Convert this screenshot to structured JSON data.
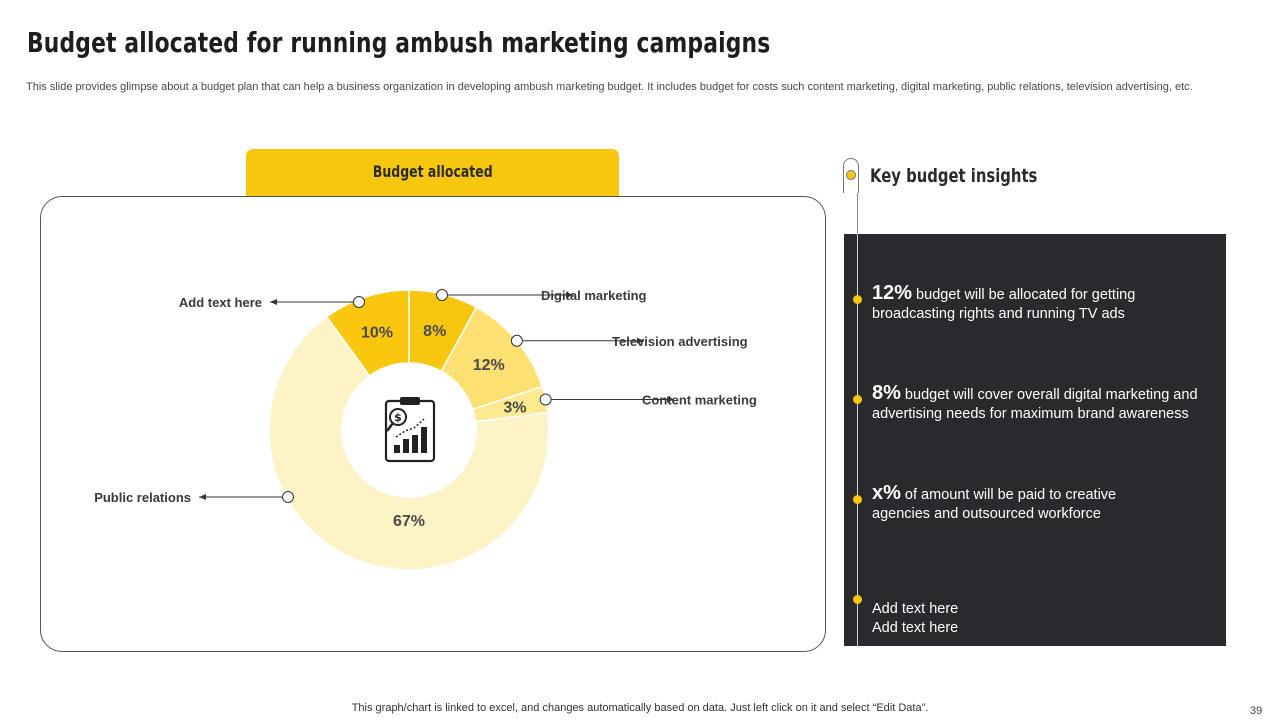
{
  "title": "Budget allocated for running ambush marketing campaigns",
  "subtitle": "This slide provides glimpse about a budget plan that can help a business organization in developing ambush marketing budget. It includes budget for costs such content marketing, digital marketing, public relations, television advertising, etc.",
  "chart_tab_label": "Budget allocated",
  "chart_icon": "budget-clipboard-chart-icon",
  "colors": {
    "accent": "#f7c70f",
    "dark_panel": "#2a2a2e",
    "slice_colors": [
      "#f7c70f",
      "#fde072",
      "#fde98f",
      "#fef3c7",
      "#f9c80e"
    ]
  },
  "chart_data": {
    "type": "donut",
    "categories": [
      "Digital marketing",
      "Television advertising",
      "Content marketing",
      "Public relations",
      "Add text here"
    ],
    "values": [
      8,
      12,
      3,
      67,
      10
    ],
    "value_labels": [
      "8%",
      "12%",
      "3%",
      "67%",
      "10%"
    ],
    "title": "Budget allocated"
  },
  "insights": {
    "title": "Key budget insights",
    "items": [
      {
        "pct": "12%",
        "text": " budget will be allocated for getting broadcasting rights and running TV ads"
      },
      {
        "pct": "8%",
        "text": " budget will cover overall digital marketing and advertising needs for maximum brand awareness"
      },
      {
        "pct": "x%",
        "text": " of amount will be paid to creative agencies and outsourced workforce"
      },
      {
        "pct": "",
        "text": "Add text here\nAdd text here"
      }
    ]
  },
  "footer_note": "This graph/chart is linked to excel,  and changes automatically based on data. Just left click on it and select “Edit Data”.",
  "page_number": "39"
}
